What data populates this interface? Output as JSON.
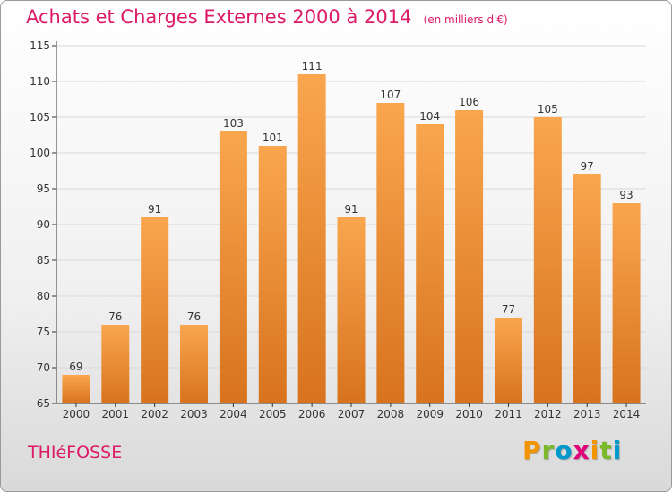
{
  "header": {
    "title": "Achats et Charges Externes 2000 à 2014",
    "unit": "(en milliers d'€)"
  },
  "footer": {
    "place": "THIéFOSSE",
    "logo": [
      "P",
      "r",
      "o",
      "x",
      "i",
      "t",
      "i"
    ],
    "logo_colors": [
      "#f29400",
      "#7ab929",
      "#0099cc",
      "#e2007a",
      "#f29400",
      "#7ab929",
      "#0099cc"
    ]
  },
  "colors": {
    "bar_light": "#f9a64f",
    "bar_dark": "#d8731d",
    "grid": "#d8d8d8",
    "title": "#dc1a66"
  },
  "chart_data": {
    "type": "bar",
    "title": "Achats et Charges Externes 2000 à 2014",
    "xlabel": "",
    "ylabel": "",
    "categories": [
      "2000",
      "2001",
      "2002",
      "2003",
      "2004",
      "2005",
      "2006",
      "2007",
      "2008",
      "2009",
      "2010",
      "2011",
      "2012",
      "2013",
      "2014"
    ],
    "values": [
      69,
      76,
      91,
      76,
      103,
      101,
      111,
      91,
      107,
      104,
      106,
      77,
      105,
      97,
      93
    ],
    "ylim": [
      65,
      115
    ],
    "yticks": [
      65,
      70,
      75,
      80,
      85,
      90,
      95,
      100,
      105,
      110,
      115
    ],
    "grid": true,
    "legend": "none"
  }
}
